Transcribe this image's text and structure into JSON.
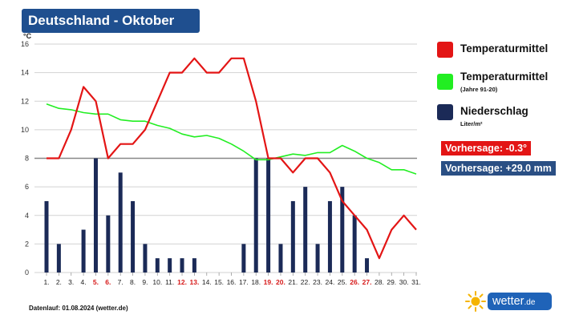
{
  "title": "Deutschland - Oktober",
  "y_unit": "°C",
  "legend": {
    "temp": {
      "label": "Temperaturmittel",
      "color": "#e31515"
    },
    "clim": {
      "label": "Temperaturmittel",
      "sub": "(Jahre 91-20)",
      "color": "#22ee22"
    },
    "precip": {
      "label": "Niederschlag",
      "sub": "Liter/m²",
      "color": "#1b2a57"
    }
  },
  "forecast": {
    "temp": "Vorhersage: -0.3°",
    "precip": "Vorhersage: +29.0 mm"
  },
  "footer": "Datenlauf: 01.08.2024 (wetter.de)",
  "brand": {
    "name": "wetter",
    "tld": ".de",
    "icon": "sun-icon"
  },
  "chart_data": {
    "type": "line",
    "x": [
      "1.",
      "2.",
      "3.",
      "4.",
      "5.",
      "6.",
      "7.",
      "8.",
      "9.",
      "10.",
      "11.",
      "12.",
      "13.",
      "14.",
      "15.",
      "16.",
      "17.",
      "18.",
      "19.",
      "20.",
      "21.",
      "22.",
      "23.",
      "24.",
      "25.",
      "26.",
      "27.",
      "28.",
      "29.",
      "30.",
      "31."
    ],
    "highlight_x": [
      "5.",
      "6.",
      "12.",
      "13.",
      "19.",
      "20.",
      "26.",
      "27."
    ],
    "ylim": [
      0,
      16
    ],
    "yticks": [
      0,
      2,
      4,
      6,
      8,
      10,
      12,
      14,
      16
    ],
    "grid": true,
    "reference_line": 8,
    "series": [
      {
        "name": "Temperaturmittel",
        "kind": "line",
        "color": "#e31515",
        "values": [
          8,
          8,
          10,
          13,
          12,
          8,
          9,
          9,
          10,
          12,
          14,
          14,
          15,
          14,
          14,
          15,
          15,
          12,
          8,
          8,
          7,
          8,
          8,
          7,
          5,
          4,
          3,
          1,
          3,
          4,
          3
        ]
      },
      {
        "name": "Temperaturmittel (Jahre 91-20)",
        "kind": "line",
        "color": "#22ee22",
        "values": [
          11.8,
          11.5,
          11.4,
          11.2,
          11.1,
          11.1,
          10.7,
          10.6,
          10.6,
          10.3,
          10.1,
          9.7,
          9.5,
          9.6,
          9.4,
          9.0,
          8.5,
          7.9,
          7.9,
          8.1,
          8.3,
          8.2,
          8.4,
          8.4,
          8.9,
          8.5,
          8.0,
          7.7,
          7.2,
          7.2,
          6.9
        ]
      },
      {
        "name": "Niederschlag",
        "kind": "bar",
        "color": "#1b2a57",
        "values": [
          5,
          2,
          0,
          3,
          8,
          4,
          7,
          5,
          2,
          1,
          1,
          1,
          1,
          0,
          0,
          0,
          2,
          8,
          8,
          2,
          5,
          6,
          2,
          5,
          6,
          4,
          1,
          0,
          0,
          0,
          0
        ]
      }
    ]
  }
}
